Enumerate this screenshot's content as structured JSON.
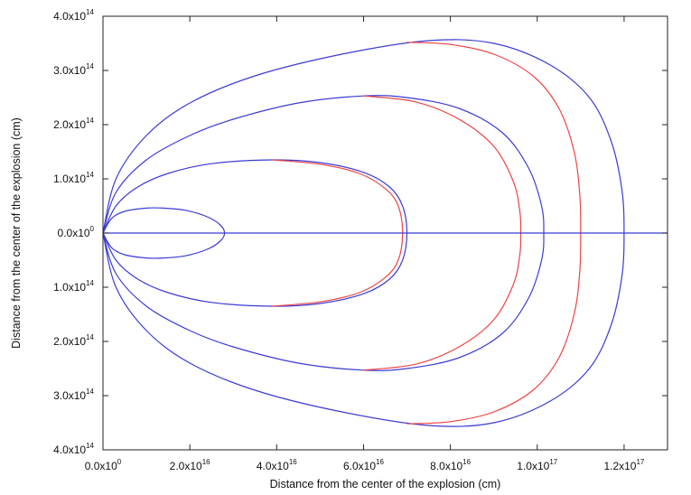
{
  "chart_data": {
    "type": "line",
    "xlabel": "Distance from the center of the explosion (cm)",
    "ylabel": "Distance from the center of the explosion (cm)",
    "xlim": [
      0,
      1.3e+17
    ],
    "ylim": [
      -400000000000000.0,
      400000000000000.0
    ],
    "grid": false,
    "legend": "none",
    "x_ticks": [
      {
        "value": 0,
        "mantissa": "0.0x10",
        "exponent": "0"
      },
      {
        "value": 2e+16,
        "mantissa": "2.0x10",
        "exponent": "16"
      },
      {
        "value": 4e+16,
        "mantissa": "4.0x10",
        "exponent": "16"
      },
      {
        "value": 6e+16,
        "mantissa": "6.0x10",
        "exponent": "16"
      },
      {
        "value": 8e+16,
        "mantissa": "8.0x10",
        "exponent": "16"
      },
      {
        "value": 1e+17,
        "mantissa": "1.0x10",
        "exponent": "17"
      },
      {
        "value": 1.2e+17,
        "mantissa": "1.2x10",
        "exponent": "17"
      }
    ],
    "y_ticks": [
      {
        "value": 400000000000000.0,
        "mantissa": "4.0x10",
        "exponent": "14"
      },
      {
        "value": 300000000000000.0,
        "mantissa": "3.0x10",
        "exponent": "14"
      },
      {
        "value": 200000000000000.0,
        "mantissa": "2.0x10",
        "exponent": "14"
      },
      {
        "value": 100000000000000.0,
        "mantissa": "1.0x10",
        "exponent": "14"
      },
      {
        "value": 0,
        "mantissa": "0.0x10",
        "exponent": "0"
      },
      {
        "value": -100000000000000.0,
        "mantissa": "1.0x10",
        "exponent": "14"
      },
      {
        "value": -200000000000000.0,
        "mantissa": "2.0x10",
        "exponent": "14"
      },
      {
        "value": -300000000000000.0,
        "mantissa": "3.0x10",
        "exponent": "14"
      },
      {
        "value": -400000000000000.0,
        "mantissa": "4.0x10",
        "exponent": "14"
      }
    ],
    "series": [
      {
        "color": "#3b3bd6",
        "points": [
          [
            0,
            0
          ],
          [
            2000000000000000.0,
            27000000000000.0
          ],
          [
            5000000000000000.0,
            40000000000000.0
          ],
          [
            1e+16,
            46000000000000.0
          ],
          [
            1.4e+16,
            46000000000000.0
          ],
          [
            1.9e+16,
            42000000000000.0
          ],
          [
            2.4e+16,
            30000000000000.0
          ],
          [
            2.7e+16,
            15000000000000.0
          ],
          [
            2.8e+16,
            0
          ],
          [
            2.7e+16,
            -15000000000000.0
          ],
          [
            2.4e+16,
            -30000000000000.0
          ],
          [
            1.9e+16,
            -42000000000000.0
          ],
          [
            1.4e+16,
            -46000000000000.0
          ],
          [
            1e+16,
            -46000000000000.0
          ],
          [
            5000000000000000.0,
            -40000000000000.0
          ],
          [
            2000000000000000.0,
            -27000000000000.0
          ],
          [
            0,
            0
          ]
        ]
      },
      {
        "color": "#3b3bd6",
        "points": [
          [
            0,
            0
          ],
          [
            3000000000000000.0,
            50000000000000.0
          ],
          [
            8000000000000000.0,
            85000000000000.0
          ],
          [
            1.5e+16,
            110000000000000.0
          ],
          [
            2.5e+16,
            128000000000000.0
          ],
          [
            3.9e+16,
            135000000000000.0
          ],
          [
            5e+16,
            130000000000000.0
          ],
          [
            6e+16,
            112000000000000.0
          ],
          [
            6.6e+16,
            85000000000000.0
          ],
          [
            6.9e+16,
            50000000000000.0
          ],
          [
            7e+16,
            0
          ],
          [
            6.9e+16,
            -50000000000000.0
          ],
          [
            6.6e+16,
            -85000000000000.0
          ],
          [
            6e+16,
            -112000000000000.0
          ],
          [
            5e+16,
            -130000000000000.0
          ],
          [
            3.9e+16,
            -135000000000000.0
          ],
          [
            2.5e+16,
            -128000000000000.0
          ],
          [
            1.5e+16,
            -110000000000000.0
          ],
          [
            8000000000000000.0,
            -85000000000000.0
          ],
          [
            3000000000000000.0,
            -50000000000000.0
          ],
          [
            0,
            0
          ]
        ]
      },
      {
        "color": "#3b3bd6",
        "points": [
          [
            0,
            0
          ],
          [
            3000000000000000.0,
            75000000000000.0
          ],
          [
            1e+16,
            135000000000000.0
          ],
          [
            2e+16,
            180000000000000.0
          ],
          [
            3e+16,
            210000000000000.0
          ],
          [
            4.5e+16,
            240000000000000.0
          ],
          [
            6e+16,
            253000000000000.0
          ],
          [
            7e+16,
            250000000000000.0
          ],
          [
            8.2e+16,
            230000000000000.0
          ],
          [
            9.2e+16,
            185000000000000.0
          ],
          [
            9.8e+16,
            120000000000000.0
          ],
          [
            1.01e+17,
            50000000000000.0
          ],
          [
            1.015e+17,
            0
          ],
          [
            1.01e+17,
            -50000000000000.0
          ],
          [
            9.8e+16,
            -120000000000000.0
          ],
          [
            9.2e+16,
            -185000000000000.0
          ],
          [
            8.2e+16,
            -230000000000000.0
          ],
          [
            7e+16,
            -250000000000000.0
          ],
          [
            6e+16,
            -253000000000000.0
          ],
          [
            4.5e+16,
            -240000000000000.0
          ],
          [
            3e+16,
            -210000000000000.0
          ],
          [
            2e+16,
            -180000000000000.0
          ],
          [
            1e+16,
            -135000000000000.0
          ],
          [
            3000000000000000.0,
            -75000000000000.0
          ],
          [
            0,
            0
          ]
        ]
      },
      {
        "color": "#3b3bd6",
        "points": [
          [
            0,
            0
          ],
          [
            3000000000000000.0,
            100000000000000.0
          ],
          [
            1e+16,
            180000000000000.0
          ],
          [
            2e+16,
            240000000000000.0
          ],
          [
            3.5e+16,
            290000000000000.0
          ],
          [
            5.5e+16,
            330000000000000.0
          ],
          [
            7.5e+16,
            355000000000000.0
          ],
          [
            9e+16,
            350000000000000.0
          ],
          [
            1.03e+17,
            310000000000000.0
          ],
          [
            1.12e+17,
            250000000000000.0
          ],
          [
            1.17e+17,
            170000000000000.0
          ],
          [
            1.195e+17,
            80000000000000.0
          ],
          [
            1.2e+17,
            0
          ],
          [
            1.195e+17,
            -80000000000000.0
          ],
          [
            1.17e+17,
            -170000000000000.0
          ],
          [
            1.12e+17,
            -250000000000000.0
          ],
          [
            1.03e+17,
            -310000000000000.0
          ],
          [
            9e+16,
            -350000000000000.0
          ],
          [
            7.5e+16,
            -355000000000000.0
          ],
          [
            5.5e+16,
            -330000000000000.0
          ],
          [
            3.5e+16,
            -290000000000000.0
          ],
          [
            2e+16,
            -240000000000000.0
          ],
          [
            1e+16,
            -180000000000000.0
          ],
          [
            3000000000000000.0,
            -100000000000000.0
          ],
          [
            0,
            0
          ]
        ]
      },
      {
        "color": "#ee4444",
        "points": [
          [
            3.9e+16,
            135000000000000.0
          ],
          [
            5e+16,
            127000000000000.0
          ],
          [
            5.9e+16,
            110000000000000.0
          ],
          [
            6.5e+16,
            82000000000000.0
          ],
          [
            6.8e+16,
            50000000000000.0
          ],
          [
            6.9e+16,
            0
          ],
          [
            6.8e+16,
            -50000000000000.0
          ],
          [
            6.5e+16,
            -82000000000000.0
          ],
          [
            5.9e+16,
            -110000000000000.0
          ],
          [
            5e+16,
            -127000000000000.0
          ],
          [
            3.9e+16,
            -135000000000000.0
          ]
        ]
      },
      {
        "color": "#ee4444",
        "points": [
          [
            6e+16,
            253000000000000.0
          ],
          [
            7.2e+16,
            242000000000000.0
          ],
          [
            8.2e+16,
            210000000000000.0
          ],
          [
            9e+16,
            160000000000000.0
          ],
          [
            9.45e+16,
            95000000000000.0
          ],
          [
            9.6e+16,
            40000000000000.0
          ],
          [
            9.62e+16,
            0
          ],
          [
            9.6e+16,
            -40000000000000.0
          ],
          [
            9.45e+16,
            -95000000000000.0
          ],
          [
            9e+16,
            -160000000000000.0
          ],
          [
            8.2e+16,
            -210000000000000.0
          ],
          [
            7.2e+16,
            -242000000000000.0
          ],
          [
            6e+16,
            -253000000000000.0
          ]
        ]
      },
      {
        "color": "#ee4444",
        "points": [
          [
            7e+16,
            352000000000000.0
          ],
          [
            8e+16,
            348000000000000.0
          ],
          [
            9e+16,
            330000000000000.0
          ],
          [
            9.9e+16,
            290000000000000.0
          ],
          [
            1.05e+17,
            230000000000000.0
          ],
          [
            1.085e+17,
            150000000000000.0
          ],
          [
            1.098e+17,
            70000000000000.0
          ],
          [
            1.1e+17,
            0
          ],
          [
            1.098e+17,
            -70000000000000.0
          ],
          [
            1.085e+17,
            -150000000000000.0
          ],
          [
            1.05e+17,
            -230000000000000.0
          ],
          [
            9.9e+16,
            -290000000000000.0
          ],
          [
            9e+16,
            -330000000000000.0
          ],
          [
            8e+16,
            -348000000000000.0
          ],
          [
            7e+16,
            -352000000000000.0
          ]
        ]
      },
      {
        "color": "#3b3bd6",
        "points": [
          [
            0,
            0
          ],
          [
            1.3e+17,
            0
          ]
        ]
      }
    ]
  }
}
